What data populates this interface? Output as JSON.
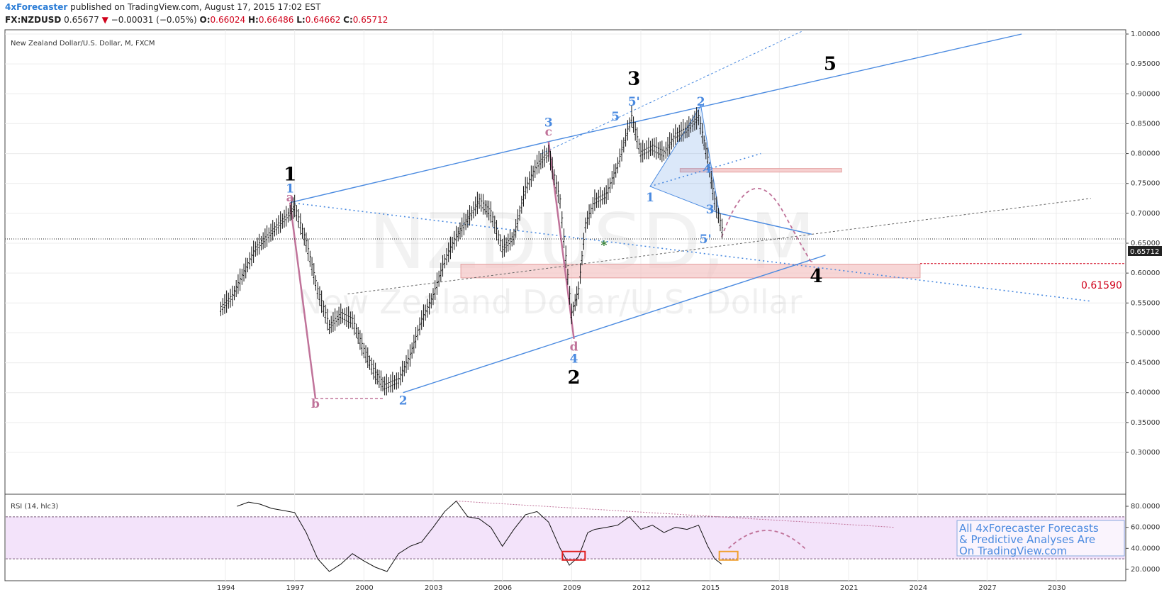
{
  "header": {
    "publisher": "4xForecaster",
    "published_text": "published on TradingView.com, August 17, 2015 17:02 EST",
    "symbol": "FX:NZDUSD",
    "last": "0.65677",
    "change": "−0.00031 (−0.05%)",
    "open_label": "O:",
    "open": "0.66024",
    "high_label": "H:",
    "high": "0.66486",
    "low_label": "L:",
    "low": "0.64662",
    "close_label": "C:",
    "close": "0.65712"
  },
  "chart_data": [
    {
      "type": "candlestick",
      "title": "New Zealand Dollar/U.S. Dollar, M, FXCM",
      "watermark_symbol": "NZDUSD, M",
      "watermark_name": "New Zealand Dollar/U.S. Dollar",
      "x_ticks": [
        "1994",
        "1997",
        "2000",
        "2003",
        "2006",
        "2009",
        "2012",
        "2015",
        "2018",
        "2021",
        "2024",
        "2027",
        "2030"
      ],
      "y_ticks": [
        "1.00000",
        "0.95000",
        "0.90000",
        "0.85000",
        "0.80000",
        "0.75000",
        "0.70000",
        "0.65000",
        "0.60000",
        "0.55000",
        "0.50000",
        "0.45000",
        "0.40000",
        "0.35000",
        "0.30000"
      ],
      "ylim": [
        0.28,
        1.0
      ],
      "last_price_label": "0.65712",
      "target_label": "0.61590",
      "target_value": 0.6159,
      "colors": {
        "up_line": "#4a8ae0",
        "wave_pink": "#c0739a",
        "zone": "#f4c4c4",
        "target": "#d0021b",
        "rsi_band": "#f3e3fa"
      },
      "series": [
        {
          "x": [
            1993.8,
            1994.3,
            1994.8,
            1995.3,
            1995.8,
            1996.3,
            1996.8,
            1997.0,
            1997.5,
            1998.0,
            1998.5,
            1999.0,
            1999.5,
            2000.0,
            2000.5,
            2000.9,
            2001.5,
            2002.0,
            2002.5,
            2003.0,
            2003.5,
            2004.0,
            2004.5,
            2005.0,
            2005.5,
            2006.0,
            2006.5,
            2007.0,
            2007.5,
            2008.0,
            2008.5,
            2009.0,
            2009.3,
            2009.6,
            2010.0,
            2010.5,
            2011.0,
            2011.6,
            2012.0,
            2012.5,
            2013.0,
            2013.5,
            2014.0,
            2014.5,
            2014.9,
            2015.2,
            2015.6
          ],
          "values": [
            0.54,
            0.56,
            0.6,
            0.64,
            0.66,
            0.68,
            0.7,
            0.71,
            0.65,
            0.57,
            0.51,
            0.53,
            0.52,
            0.47,
            0.43,
            0.41,
            0.42,
            0.46,
            0.52,
            0.56,
            0.62,
            0.66,
            0.69,
            0.72,
            0.7,
            0.64,
            0.66,
            0.74,
            0.78,
            0.8,
            0.72,
            0.53,
            0.57,
            0.68,
            0.72,
            0.73,
            0.78,
            0.86,
            0.8,
            0.81,
            0.8,
            0.83,
            0.84,
            0.86,
            0.79,
            0.72,
            0.66
          ]
        }
      ],
      "annotations": [
        {
          "text": "1",
          "x": 1996.8,
          "y": 0.755,
          "color": "#000000"
        },
        {
          "text": "1",
          "x": 1996.8,
          "y": 0.735,
          "color": "#4a8ae0"
        },
        {
          "text": "a",
          "x": 1996.8,
          "y": 0.72,
          "color": "#c0739a"
        },
        {
          "text": "b",
          "x": 1997.9,
          "y": 0.375,
          "color": "#c0739a"
        },
        {
          "text": "2",
          "x": 2001.7,
          "y": 0.38,
          "color": "#4a8ae0"
        },
        {
          "text": "3",
          "x": 2008.0,
          "y": 0.845,
          "color": "#4a8ae0"
        },
        {
          "text": "c",
          "x": 2008.0,
          "y": 0.83,
          "color": "#c0739a"
        },
        {
          "text": "d",
          "x": 2009.1,
          "y": 0.47,
          "color": "#c0739a"
        },
        {
          "text": "4",
          "x": 2009.1,
          "y": 0.45,
          "color": "#4a8ae0"
        },
        {
          "text": "2",
          "x": 2009.1,
          "y": 0.415,
          "color": "#000000"
        },
        {
          "text": "5",
          "x": 2010.9,
          "y": 0.855,
          "color": "#4a8ae0"
        },
        {
          "text": "5'",
          "x": 2011.7,
          "y": 0.88,
          "color": "#4a8ae0"
        },
        {
          "text": "3",
          "x": 2011.7,
          "y": 0.915,
          "color": "#000000"
        },
        {
          "text": "2",
          "x": 2014.6,
          "y": 0.88,
          "color": "#4a8ae0"
        },
        {
          "text": "4",
          "x": 2014.9,
          "y": 0.768,
          "color": "#4a8ae0"
        },
        {
          "text": "1",
          "x": 2012.4,
          "y": 0.72,
          "color": "#4a8ae0"
        },
        {
          "text": "3",
          "x": 2015.0,
          "y": 0.7,
          "color": "#4a8ae0"
        },
        {
          "text": "5'",
          "x": 2014.8,
          "y": 0.65,
          "color": "#4a8ae0"
        },
        {
          "text": "4",
          "x": 2019.6,
          "y": 0.585,
          "color": "#000000"
        },
        {
          "text": "5",
          "x": 2020.2,
          "y": 0.94,
          "color": "#000000"
        },
        {
          "text": "*",
          "x": 2010.4,
          "y": 0.64,
          "color": "#2a7a2a"
        }
      ]
    },
    {
      "type": "line",
      "title": "RSI (14, hlc3)",
      "y_ticks": [
        "80.0000",
        "60.0000",
        "40.0000",
        "20.0000"
      ],
      "ylim": [
        10,
        90
      ],
      "band": [
        30,
        70
      ],
      "series": [
        {
          "x": [
            1994.5,
            1995.0,
            1995.5,
            1996.0,
            1996.5,
            1997.0,
            1997.5,
            1998.0,
            1998.5,
            1999.0,
            1999.5,
            2000.0,
            2000.5,
            2001.0,
            2001.5,
            2002.0,
            2002.5,
            2003.0,
            2003.5,
            2004.0,
            2004.5,
            2005.0,
            2005.5,
            2006.0,
            2006.5,
            2007.0,
            2007.5,
            2008.0,
            2008.5,
            2008.9,
            2009.3,
            2009.7,
            2010.0,
            2010.5,
            2011.0,
            2011.5,
            2012.0,
            2012.5,
            2013.0,
            2013.5,
            2014.0,
            2014.5,
            2014.9,
            2015.2,
            2015.5
          ],
          "values": [
            80,
            84,
            82,
            78,
            76,
            74,
            55,
            30,
            18,
            25,
            35,
            28,
            22,
            18,
            35,
            42,
            46,
            60,
            75,
            85,
            70,
            68,
            60,
            42,
            58,
            72,
            75,
            65,
            40,
            24,
            32,
            55,
            58,
            60,
            62,
            70,
            58,
            62,
            55,
            60,
            58,
            62,
            42,
            30,
            25
          ]
        }
      ],
      "annotation_text": [
        "All 4xForecaster Forecasts",
        "& Predictive Analyses Are",
        "On TradingView.com"
      ]
    }
  ]
}
